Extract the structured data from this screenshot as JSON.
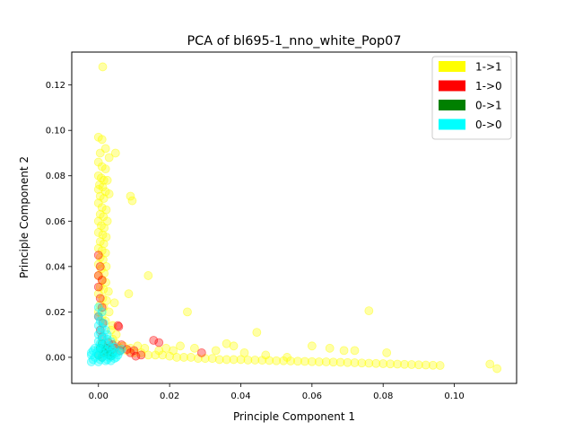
{
  "chart_data": {
    "type": "scatter",
    "title": "PCA of bl695-1_nno_white_Pop07",
    "xlabel": "Principle Component 1",
    "ylabel": "Principle Component 2",
    "xlim": [
      -0.0075,
      0.1175
    ],
    "ylim": [
      -0.0115,
      0.1345
    ],
    "xticks": [
      0.0,
      0.02,
      0.04,
      0.06,
      0.08,
      0.1
    ],
    "xtick_labels": [
      "0.00",
      "0.02",
      "0.04",
      "0.06",
      "0.08",
      "0.10"
    ],
    "yticks": [
      0.0,
      0.02,
      0.04,
      0.06,
      0.08,
      0.1,
      0.12
    ],
    "ytick_labels": [
      "0.00",
      "0.02",
      "0.04",
      "0.06",
      "0.08",
      "0.10",
      "0.12"
    ],
    "legend_position": "top-right",
    "series": [
      {
        "name": "1->1",
        "color": "#ffff00",
        "points": [
          [
            0.0012,
            0.128
          ],
          [
            0.0,
            0.097
          ],
          [
            0.001,
            0.096
          ],
          [
            0.002,
            0.092
          ],
          [
            0.0005,
            0.09
          ],
          [
            0.0048,
            0.09
          ],
          [
            0.003,
            0.088
          ],
          [
            0.0,
            0.086
          ],
          [
            0.001,
            0.084
          ],
          [
            0.002,
            0.083
          ],
          [
            0.0,
            0.08
          ],
          [
            0.0008,
            0.079
          ],
          [
            0.0015,
            0.078
          ],
          [
            0.0025,
            0.078
          ],
          [
            0.0003,
            0.076
          ],
          [
            0.0012,
            0.075
          ],
          [
            0.0,
            0.074
          ],
          [
            0.002,
            0.073
          ],
          [
            0.003,
            0.072
          ],
          [
            0.0005,
            0.071
          ],
          [
            0.0015,
            0.07
          ],
          [
            0.009,
            0.071
          ],
          [
            0.0095,
            0.069
          ],
          [
            0.0,
            0.068
          ],
          [
            0.001,
            0.066
          ],
          [
            0.0022,
            0.065
          ],
          [
            0.0005,
            0.063
          ],
          [
            0.0014,
            0.062
          ],
          [
            0.0,
            0.06
          ],
          [
            0.0025,
            0.06
          ],
          [
            0.0008,
            0.058
          ],
          [
            0.0016,
            0.057
          ],
          [
            0.0,
            0.055
          ],
          [
            0.0012,
            0.054
          ],
          [
            0.0022,
            0.053
          ],
          [
            0.0005,
            0.051
          ],
          [
            0.0015,
            0.05
          ],
          [
            0.0,
            0.048
          ],
          [
            0.001,
            0.047
          ],
          [
            0.002,
            0.046
          ],
          [
            0.0005,
            0.044
          ],
          [
            0.0013,
            0.043
          ],
          [
            0.0,
            0.041
          ],
          [
            0.0022,
            0.04
          ],
          [
            0.0008,
            0.039
          ],
          [
            0.0016,
            0.037
          ],
          [
            0.0,
            0.036
          ],
          [
            0.0011,
            0.034
          ],
          [
            0.0021,
            0.033
          ],
          [
            0.0005,
            0.031
          ],
          [
            0.0014,
            0.03
          ],
          [
            0.0,
            0.028
          ],
          [
            0.0085,
            0.028
          ],
          [
            0.0012,
            0.026
          ],
          [
            0.0023,
            0.025
          ],
          [
            0.0004,
            0.023
          ],
          [
            0.0015,
            0.022
          ],
          [
            0.0,
            0.02
          ],
          [
            0.001,
            0.018
          ],
          [
            0.002,
            0.016
          ],
          [
            0.014,
            0.036
          ],
          [
            0.025,
            0.02
          ],
          [
            0.0035,
            0.012
          ],
          [
            0.004,
            0.008
          ],
          [
            0.005,
            0.006
          ],
          [
            0.006,
            0.004
          ],
          [
            0.008,
            0.003
          ],
          [
            0.01,
            0.002
          ],
          [
            0.012,
            0.002
          ],
          [
            0.014,
            0.001
          ],
          [
            0.016,
            0.001
          ],
          [
            0.018,
            0.001
          ],
          [
            0.02,
            0.0005
          ],
          [
            0.022,
            0.0
          ],
          [
            0.024,
            0.0
          ],
          [
            0.026,
            0.0
          ],
          [
            0.028,
            -0.0005
          ],
          [
            0.03,
            -0.0005
          ],
          [
            0.032,
            -0.0005
          ],
          [
            0.034,
            -0.001
          ],
          [
            0.036,
            -0.001
          ],
          [
            0.038,
            -0.001
          ],
          [
            0.04,
            -0.001
          ],
          [
            0.042,
            -0.0012
          ],
          [
            0.044,
            -0.0012
          ],
          [
            0.046,
            -0.0013
          ],
          [
            0.048,
            -0.0014
          ],
          [
            0.05,
            -0.0015
          ],
          [
            0.052,
            -0.0015
          ],
          [
            0.054,
            -0.0016
          ],
          [
            0.056,
            -0.0017
          ],
          [
            0.058,
            -0.0018
          ],
          [
            0.06,
            -0.0019
          ],
          [
            0.062,
            -0.002
          ],
          [
            0.064,
            -0.002
          ],
          [
            0.066,
            -0.0021
          ],
          [
            0.068,
            -0.0022
          ],
          [
            0.07,
            -0.0023
          ],
          [
            0.072,
            -0.0024
          ],
          [
            0.074,
            -0.0025
          ],
          [
            0.076,
            -0.0026
          ],
          [
            0.078,
            -0.0027
          ],
          [
            0.08,
            -0.0028
          ],
          [
            0.082,
            -0.0029
          ],
          [
            0.084,
            -0.003
          ],
          [
            0.086,
            -0.0031
          ],
          [
            0.088,
            -0.0032
          ],
          [
            0.09,
            -0.0033
          ],
          [
            0.092,
            -0.0034
          ],
          [
            0.094,
            -0.0035
          ],
          [
            0.096,
            -0.0036
          ],
          [
            0.11,
            -0.003
          ],
          [
            0.112,
            -0.005
          ],
          [
            0.076,
            0.0205
          ],
          [
            0.0445,
            0.011
          ],
          [
            0.06,
            0.005
          ],
          [
            0.065,
            0.004
          ],
          [
            0.069,
            0.003
          ],
          [
            0.072,
            0.003
          ],
          [
            0.081,
            0.002
          ],
          [
            0.019,
            0.004
          ],
          [
            0.021,
            0.003
          ],
          [
            0.023,
            0.005
          ],
          [
            0.027,
            0.004
          ],
          [
            0.036,
            0.006
          ],
          [
            0.038,
            0.005
          ],
          [
            0.033,
            0.003
          ],
          [
            0.041,
            0.002
          ],
          [
            0.047,
            0.001
          ],
          [
            0.053,
            0.0
          ],
          [
            0.011,
            0.005
          ],
          [
            0.013,
            0.004
          ],
          [
            0.017,
            0.003
          ],
          [
            0.007,
            0.005
          ],
          [
            0.009,
            0.004
          ],
          [
            0.005,
            0.01
          ],
          [
            0.004,
            0.014
          ],
          [
            0.003,
            0.02
          ],
          [
            0.0045,
            0.024
          ],
          [
            0.0028,
            0.029
          ]
        ]
      },
      {
        "name": "1->0",
        "color": "#ff0000",
        "points": [
          [
            0.0,
            0.045
          ],
          [
            0.0005,
            0.04
          ],
          [
            0.0,
            0.036
          ],
          [
            0.001,
            0.034
          ],
          [
            0.0,
            0.031
          ],
          [
            0.0005,
            0.026
          ],
          [
            0.001,
            0.022
          ],
          [
            0.0,
            0.018
          ],
          [
            0.0012,
            0.015
          ],
          [
            0.0005,
            0.012
          ],
          [
            0.001,
            0.009
          ],
          [
            0.0028,
            0.0065
          ],
          [
            0.004,
            0.0055
          ],
          [
            0.0045,
            0.004
          ],
          [
            0.006,
            0.003
          ],
          [
            0.0065,
            0.0055
          ],
          [
            0.008,
            0.0035
          ],
          [
            0.0105,
            0.0005
          ],
          [
            0.0055,
            0.014
          ],
          [
            0.0057,
            0.0135
          ],
          [
            0.0155,
            0.0075
          ],
          [
            0.017,
            0.0065
          ],
          [
            0.029,
            0.002
          ],
          [
            0.01,
            0.003
          ],
          [
            0.012,
            0.001
          ],
          [
            0.003,
            0.002
          ],
          [
            0.002,
            0.004
          ],
          [
            0.009,
            0.002
          ]
        ]
      },
      {
        "name": "0->1",
        "color": "#008000",
        "points": [
          [
            0.001,
            0.006
          ],
          [
            0.0005,
            0.004
          ],
          [
            0.002,
            0.003
          ],
          [
            0.0015,
            0.002
          ],
          [
            0.0,
            0.001
          ],
          [
            0.003,
            0.001
          ],
          [
            0.0025,
            0.004
          ],
          [
            0.001,
            0.0
          ],
          [
            0.0035,
            0.0005
          ],
          [
            0.004,
            0.002
          ]
        ]
      },
      {
        "name": "0->0",
        "color": "#00ffff",
        "points": [
          [
            0.0,
            0.022
          ],
          [
            0.001,
            0.02
          ],
          [
            0.0,
            0.018
          ],
          [
            0.0005,
            0.016
          ],
          [
            0.0015,
            0.015
          ],
          [
            0.0,
            0.014
          ],
          [
            0.001,
            0.013
          ],
          [
            0.002,
            0.012
          ],
          [
            0.0005,
            0.011
          ],
          [
            0.0,
            0.01
          ],
          [
            0.0015,
            0.009
          ],
          [
            0.001,
            0.008
          ],
          [
            0.0025,
            0.008
          ],
          [
            0.0,
            0.007
          ],
          [
            0.0005,
            0.006
          ],
          [
            0.002,
            0.006
          ],
          [
            0.003,
            0.005
          ],
          [
            0.001,
            0.005
          ],
          [
            -0.001,
            0.004
          ],
          [
            0.0,
            0.004
          ],
          [
            0.0015,
            0.004
          ],
          [
            0.0035,
            0.004
          ],
          [
            -0.0015,
            0.003
          ],
          [
            0.0005,
            0.003
          ],
          [
            0.0025,
            0.003
          ],
          [
            0.004,
            0.003
          ],
          [
            -0.002,
            0.002
          ],
          [
            -0.0005,
            0.002
          ],
          [
            0.001,
            0.002
          ],
          [
            0.003,
            0.002
          ],
          [
            0.005,
            0.002
          ],
          [
            -0.002,
            0.001
          ],
          [
            0.0,
            0.001
          ],
          [
            0.002,
            0.001
          ],
          [
            0.004,
            0.001
          ],
          [
            -0.001,
            0.0
          ],
          [
            0.001,
            0.0
          ],
          [
            0.003,
            0.0
          ],
          [
            0.005,
            0.0
          ],
          [
            -0.0015,
            -0.001
          ],
          [
            0.0005,
            -0.001
          ],
          [
            0.0025,
            -0.001
          ],
          [
            0.0045,
            -0.0005
          ],
          [
            -0.002,
            -0.002
          ],
          [
            0.0,
            -0.002
          ],
          [
            0.002,
            -0.0015
          ],
          [
            0.0045,
            0.0045
          ],
          [
            0.0035,
            0.007
          ],
          [
            0.0025,
            0.01
          ],
          [
            0.0035,
            -0.0015
          ],
          [
            0.0055,
            0.001
          ],
          [
            0.006,
            0.0025
          ],
          [
            0.0065,
            0.0035
          ]
        ]
      }
    ]
  }
}
